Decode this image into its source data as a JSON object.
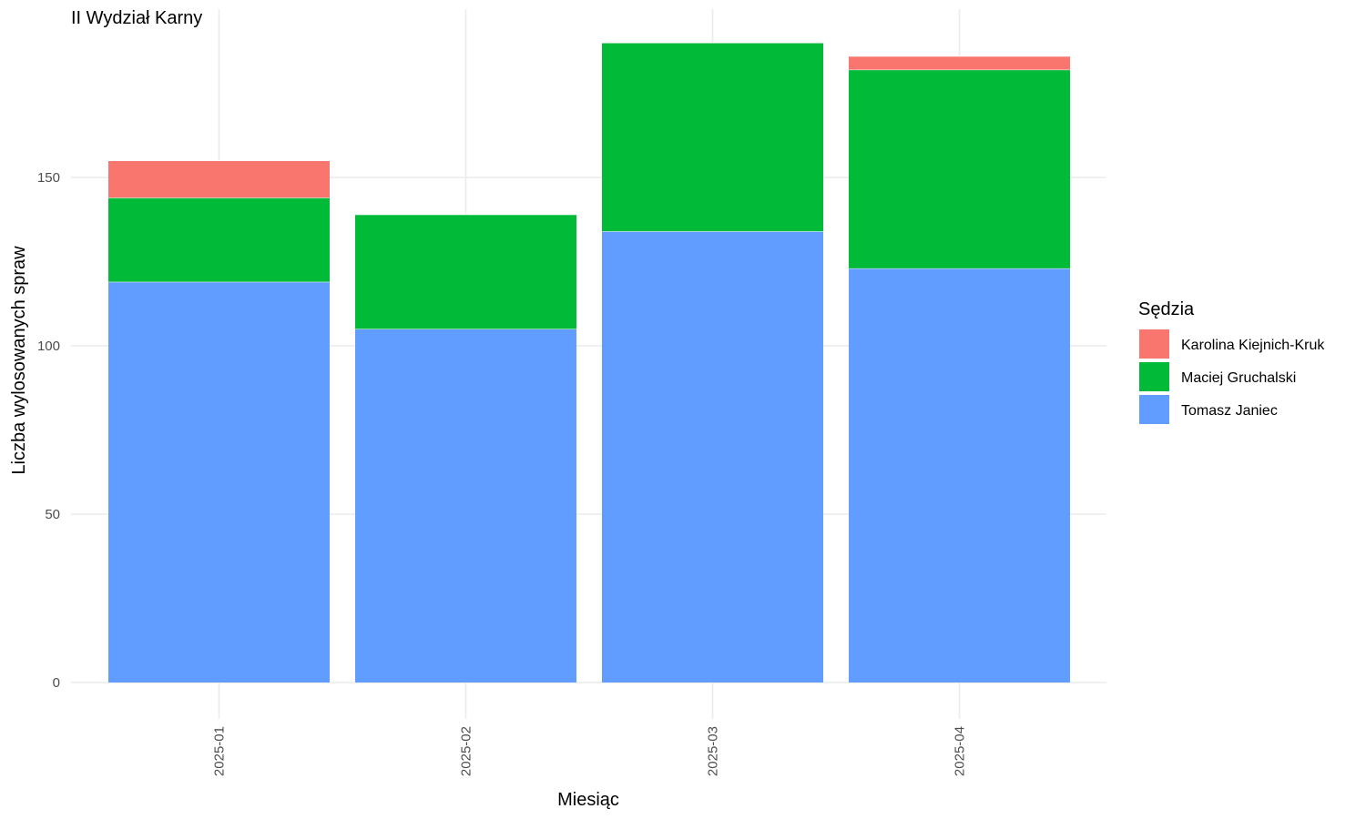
{
  "chart_data": {
    "type": "bar",
    "stacked": true,
    "title": "II Wydział Karny",
    "xlabel": "Miesiąc",
    "ylabel": "Liczba wylosowanych spraw",
    "categories": [
      "2025-01",
      "2025-02",
      "2025-03",
      "2025-04"
    ],
    "ylim": [
      0,
      195
    ],
    "yticks": [
      0,
      50,
      100,
      150
    ],
    "grid": true,
    "legend": {
      "title": "Sędzia",
      "position": "right"
    },
    "series": [
      {
        "name": "Tomasz Janiec",
        "color": "#619CFF",
        "values": [
          119,
          105,
          134,
          123
        ]
      },
      {
        "name": "Maciej Gruchalski",
        "color": "#00BA38",
        "values": [
          25,
          34,
          56,
          59
        ]
      },
      {
        "name": "Karolina Kiejnich-Kruk",
        "color": "#F8766D",
        "values": [
          11,
          0,
          0,
          4
        ]
      }
    ],
    "legend_order": [
      "Karolina Kiejnich-Kruk",
      "Maciej Gruchalski",
      "Tomasz Janiec"
    ]
  }
}
